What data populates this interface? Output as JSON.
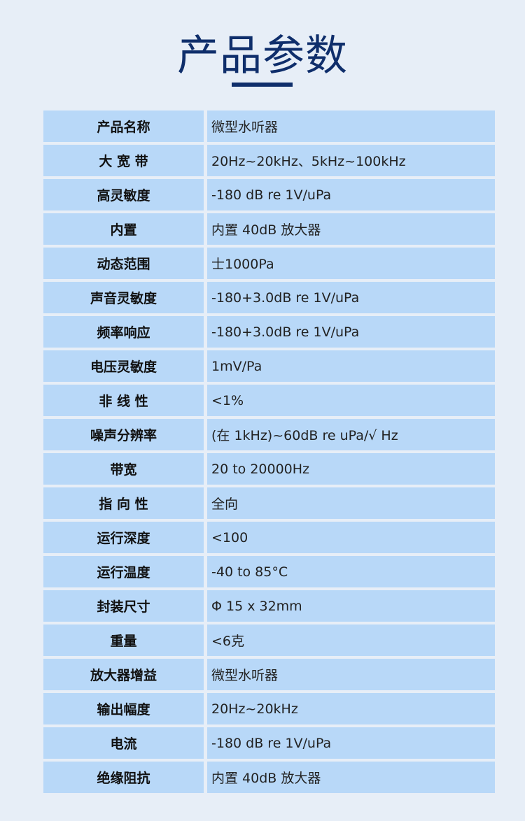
{
  "title": "产品参数",
  "colors": {
    "title": "#0f2e6b",
    "cell": "#b8d8f8",
    "background": "#e7eef7"
  },
  "specs": [
    {
      "label": "产品名称",
      "value": "微型水听器"
    },
    {
      "label": "大 宽 带",
      "value": "20Hz~20kHz、5kHz~100kHz"
    },
    {
      "label": "高灵敏度",
      "value": "-180 dB re 1V/uPa"
    },
    {
      "label": "内置",
      "value": "内置 40dB 放大器"
    },
    {
      "label": "动态范围",
      "value": "士1000Pa"
    },
    {
      "label": "声音灵敏度",
      "value": "-180+3.0dB re 1V/uPa"
    },
    {
      "label": "频率响应",
      "value": "-180+3.0dB re 1V/uPa"
    },
    {
      "label": "电压灵敏度",
      "value": "1mV/Pa"
    },
    {
      "label": "非 线 性",
      "value": "<1%"
    },
    {
      "label": "噪声分辨率",
      "value": "(在 1kHz)~60dB re uPa/√ Hz"
    },
    {
      "label": "带宽",
      "value": "20 to 20000Hz"
    },
    {
      "label": "指 向 性",
      "value": "全向"
    },
    {
      "label": "运行深度",
      "value": "<100"
    },
    {
      "label": "运行温度",
      "value": "-40 to 85°C"
    },
    {
      "label": "封装尺寸",
      "value": "Φ 15 x 32mm"
    },
    {
      "label": "重量",
      "value": "<6克"
    },
    {
      "label": "放大器增益",
      "value": "微型水听器"
    },
    {
      "label": "输出幅度",
      "value": "20Hz~20kHz"
    },
    {
      "label": "电流",
      "value": "-180 dB re 1V/uPa"
    },
    {
      "label": "绝缘阻抗",
      "value": "内置 40dB 放大器"
    }
  ]
}
